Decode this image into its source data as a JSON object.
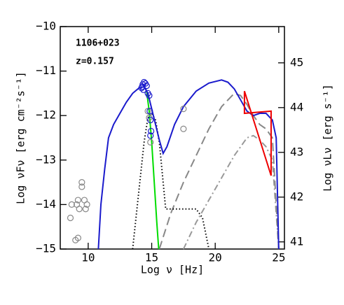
{
  "chart_data": {
    "type": "line",
    "annotations": [
      "1106+023",
      "z=0.157"
    ],
    "xlabel": "Log ν  [Hz]",
    "ylabel": "Log νFν [erg cm⁻²s⁻¹]",
    "y2label": "Log νLν [erg s⁻¹]",
    "xlim": [
      7.8,
      25.45
    ],
    "xticks": [
      10,
      15,
      20,
      25
    ],
    "ylim": [
      -15,
      -10
    ],
    "yticks": [
      {
        "value": -15,
        "label": "−15"
      },
      {
        "value": -14,
        "label": "−14"
      },
      {
        "value": -13,
        "label": "−13"
      },
      {
        "value": -12,
        "label": "−12"
      },
      {
        "value": -11,
        "label": "−11"
      },
      {
        "value": -10,
        "label": "−10"
      }
    ],
    "y2lim": [
      40.84,
      45.81
    ],
    "y2ticks": [
      41,
      42,
      43,
      44,
      45
    ],
    "series": [
      {
        "color": "#999999",
        "style": "dashdot",
        "x": [
          17.5,
          18.5,
          19.5,
          20.5,
          21.5,
          22.5,
          23,
          23.5,
          24,
          24.5,
          25
        ],
        "values": [
          -15,
          -14.4,
          -13.9,
          -13.4,
          -12.9,
          -12.5,
          -12.45,
          -12.55,
          -12.7,
          -13.0,
          -15
        ]
      },
      {
        "color": "#888888",
        "style": "dashed",
        "x": [
          15.6,
          16.5,
          17.5,
          18.5,
          19.5,
          20.5,
          21.5,
          22,
          22.5,
          23,
          23.5,
          24,
          24.5,
          25
        ],
        "values": [
          -15,
          -14.2,
          -13.5,
          -12.9,
          -12.3,
          -11.8,
          -11.5,
          -11.55,
          -11.75,
          -12.0,
          -12.2,
          -12.3,
          -12.5,
          -15
        ]
      },
      {
        "color": "#000000",
        "style": "dotted",
        "x": [
          13.5,
          13.8,
          14.1,
          14.4,
          14.7,
          15,
          15.3,
          15.6,
          15.9,
          16.1,
          17,
          18.5,
          19,
          19.5
        ],
        "values": [
          -15,
          -14.2,
          -13.4,
          -12.6,
          -12.05,
          -11.95,
          -12.1,
          -12.6,
          -13.5,
          -14.1,
          -14.1,
          -14.1,
          -14.3,
          -15
        ]
      },
      {
        "color": "#00dd00",
        "style": "solid",
        "x": [
          14.6,
          14.8,
          15.0,
          15.2,
          15.4,
          15.55
        ],
        "values": [
          -11.45,
          -11.9,
          -12.6,
          -13.5,
          -14.4,
          -15
        ]
      },
      {
        "color": "#1a1acc",
        "style": "solid",
        "x": [
          10.8,
          11.0,
          11.3,
          11.6,
          12,
          12.5,
          13,
          13.5,
          14,
          14.4,
          14.7,
          15,
          15.3,
          15.6,
          15.9,
          16.2,
          16.8,
          17.5,
          18.5,
          19.5,
          20.5,
          21,
          21.5,
          22,
          22.5,
          23,
          23.5,
          24,
          24.5,
          24.8,
          25
        ],
        "values": [
          -15,
          -14,
          -13.2,
          -12.5,
          -12.2,
          -11.95,
          -11.7,
          -11.5,
          -11.38,
          -11.35,
          -11.5,
          -11.85,
          -12.2,
          -12.55,
          -12.85,
          -12.7,
          -12.2,
          -11.8,
          -11.45,
          -11.27,
          -11.2,
          -11.25,
          -11.4,
          -11.65,
          -11.9,
          -12.0,
          -11.95,
          -11.95,
          -12.1,
          -12.5,
          -15
        ]
      },
      {
        "color": "#ee0000",
        "style": "solid",
        "x": [
          22.3,
          22.3,
          24.4,
          24.4,
          22.3
        ],
        "values": [
          -11.45,
          -11.95,
          -11.9,
          -13.35,
          -11.45
        ]
      }
    ],
    "points": [
      {
        "color": "#888888",
        "x": [
          8.6,
          8.7,
          9.1,
          9.2,
          9.3,
          9.5,
          9.5,
          9.7,
          9.8,
          9.9,
          9.0,
          9.2,
          14.7,
          14.8,
          14.9,
          17.5,
          17.5
        ],
        "values": [
          -14.3,
          -14.0,
          -14.0,
          -13.9,
          -14.1,
          -13.5,
          -13.6,
          -13.9,
          -14.1,
          -14.0,
          -14.8,
          -14.75,
          -11.9,
          -12.05,
          -12.6,
          -11.85,
          -12.3
        ]
      },
      {
        "color": "#1a1acc",
        "x": [
          14.2,
          14.3,
          14.4,
          14.5,
          14.35,
          14.25,
          14.6,
          14.7,
          14.8,
          14.85,
          14.9,
          14.95,
          14.9
        ],
        "values": [
          -11.38,
          -11.3,
          -11.25,
          -11.28,
          -11.42,
          -11.35,
          -11.33,
          -11.5,
          -11.55,
          -11.9,
          -12.1,
          -12.35,
          -12.45
        ]
      }
    ]
  }
}
